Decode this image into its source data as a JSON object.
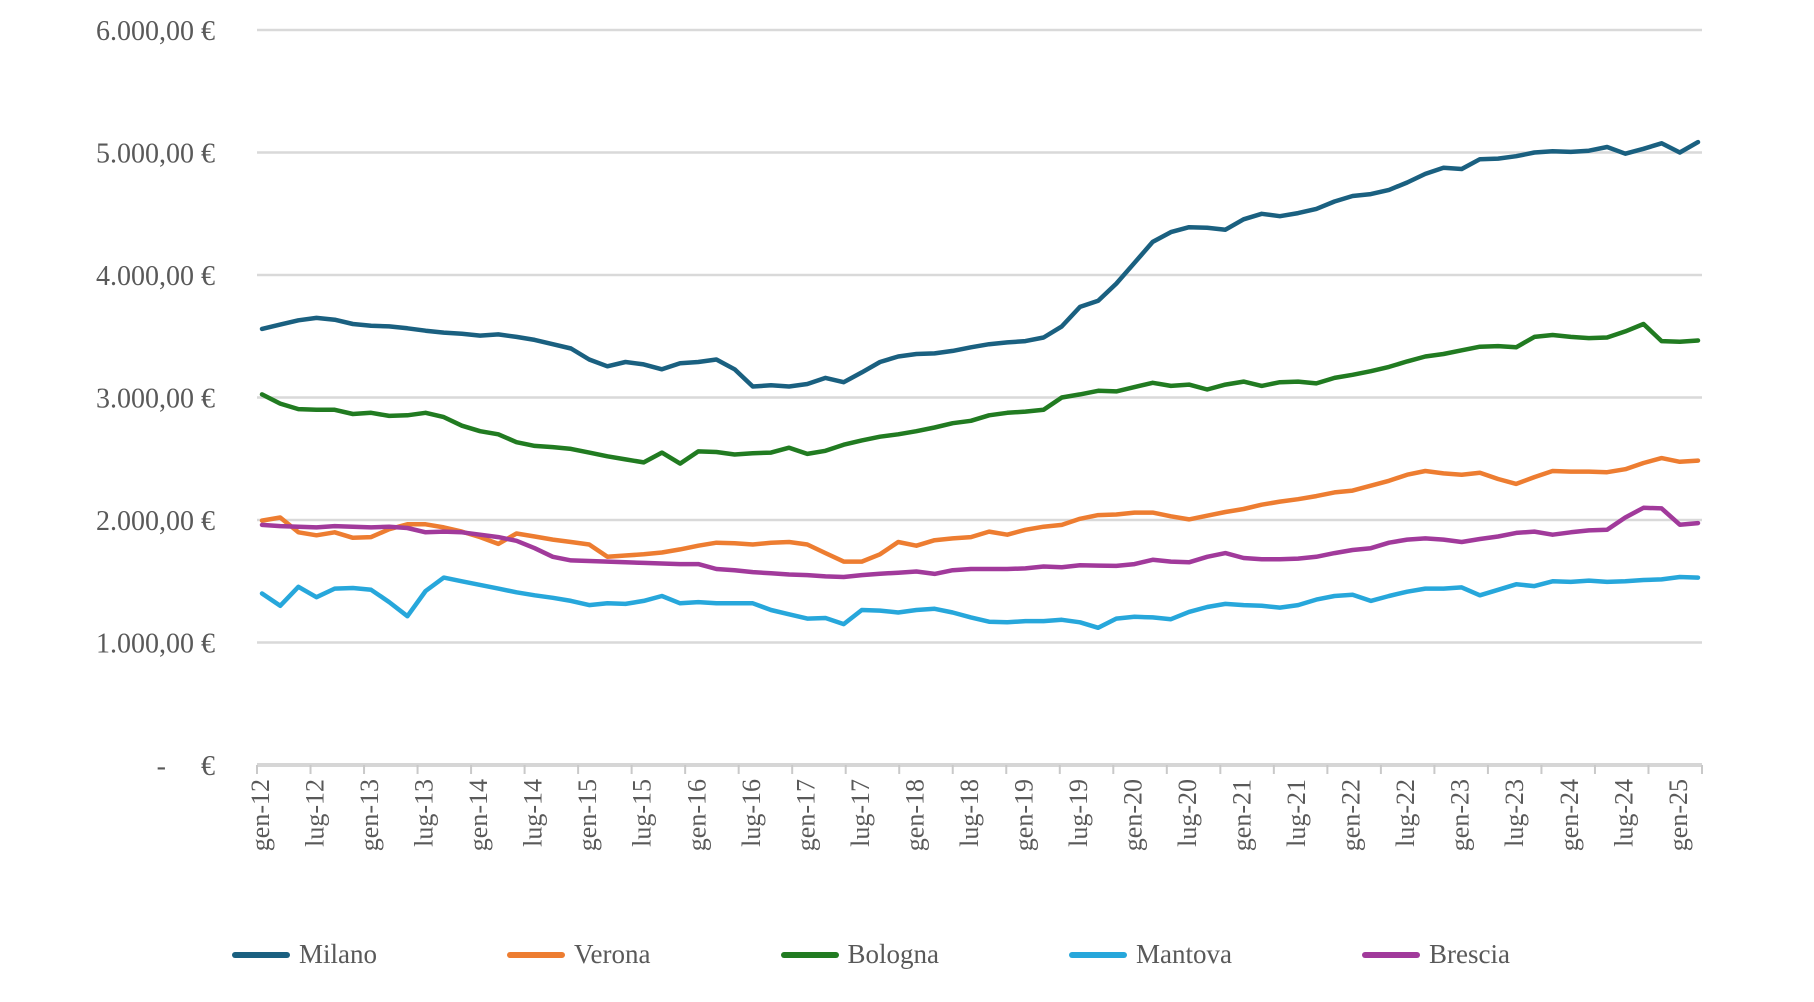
{
  "chart_data": {
    "type": "line",
    "title": "",
    "grid": true,
    "legend_position": "bottom",
    "x_axis": {
      "start": "gen-12",
      "end": "mar-25",
      "points_step_months": 2,
      "tick_labels": [
        "gen-12",
        "lug-12",
        "gen-13",
        "lug-13",
        "gen-14",
        "lug-14",
        "gen-15",
        "lug-15",
        "gen-16",
        "lug-16",
        "gen-17",
        "lug-17",
        "gen-18",
        "lug-18",
        "gen-19",
        "lug-19",
        "gen-20",
        "lug-20",
        "gen-21",
        "lug-21",
        "gen-22",
        "lug-22",
        "gen-23",
        "lug-23",
        "gen-24",
        "lug-24",
        "gen-25"
      ]
    },
    "y_axis": {
      "range": [
        0,
        6000
      ],
      "ticks": [
        {
          "value": 6000,
          "label": "6.000,00 €"
        },
        {
          "value": 5000,
          "label": "5.000,00 €"
        },
        {
          "value": 4000,
          "label": "4.000,00 €"
        },
        {
          "value": 3000,
          "label": "3.000,00 €"
        },
        {
          "value": 2000,
          "label": "2.000,00 €"
        },
        {
          "value": 1000,
          "label": "1.000,00 €"
        },
        {
          "value": 0,
          "label": "-     €"
        }
      ]
    },
    "colors": {
      "grid": "#D9D9D9",
      "axis": "#D6D6D6",
      "tick": "#C9C9C9",
      "text": "#595959"
    },
    "series": [
      {
        "name": "Milano",
        "color": "#1A6080",
        "values": [
          3560,
          3595,
          3630,
          3650,
          3635,
          3600,
          3585,
          3580,
          3565,
          3545,
          3530,
          3520,
          3505,
          3515,
          3495,
          3470,
          3435,
          3400,
          3310,
          3255,
          3290,
          3270,
          3230,
          3280,
          3290,
          3310,
          3230,
          3090,
          3100,
          3090,
          3110,
          3160,
          3125,
          3205,
          3290,
          3335,
          3355,
          3360,
          3380,
          3410,
          3435,
          3450,
          3460,
          3490,
          3580,
          3740,
          3790,
          3930,
          4100,
          4270,
          4350,
          4390,
          4385,
          4370,
          4455,
          4500,
          4480,
          4505,
          4540,
          4600,
          4645,
          4660,
          4695,
          4755,
          4825,
          4875,
          4865,
          4945,
          4950,
          4970,
          5000,
          5010,
          5005,
          5015,
          5045,
          4990,
          5030,
          5075,
          5000,
          5085
        ]
      },
      {
        "name": "Verona",
        "color": "#ED7D31",
        "values": [
          1995,
          2020,
          1900,
          1875,
          1900,
          1855,
          1860,
          1925,
          1965,
          1965,
          1940,
          1905,
          1860,
          1805,
          1890,
          1865,
          1840,
          1820,
          1800,
          1700,
          1710,
          1720,
          1735,
          1760,
          1790,
          1815,
          1810,
          1800,
          1815,
          1820,
          1800,
          1730,
          1660,
          1660,
          1720,
          1820,
          1790,
          1835,
          1850,
          1860,
          1905,
          1880,
          1920,
          1945,
          1960,
          2010,
          2040,
          2045,
          2060,
          2060,
          2030,
          2005,
          2035,
          2065,
          2090,
          2125,
          2150,
          2170,
          2195,
          2225,
          2240,
          2280,
          2320,
          2370,
          2400,
          2380,
          2370,
          2385,
          2335,
          2295,
          2350,
          2400,
          2395,
          2395,
          2390,
          2415,
          2465,
          2505,
          2475,
          2485
        ]
      },
      {
        "name": "Bologna",
        "color": "#217B21",
        "values": [
          3025,
          2950,
          2905,
          2900,
          2900,
          2865,
          2875,
          2850,
          2855,
          2875,
          2840,
          2770,
          2725,
          2700,
          2635,
          2605,
          2595,
          2580,
          2550,
          2520,
          2495,
          2470,
          2550,
          2460,
          2560,
          2555,
          2535,
          2545,
          2550,
          2590,
          2540,
          2565,
          2615,
          2650,
          2680,
          2700,
          2725,
          2755,
          2790,
          2810,
          2855,
          2875,
          2885,
          2900,
          3000,
          3025,
          3055,
          3050,
          3085,
          3120,
          3095,
          3105,
          3065,
          3105,
          3130,
          3095,
          3125,
          3130,
          3115,
          3160,
          3185,
          3215,
          3250,
          3295,
          3335,
          3355,
          3385,
          3415,
          3420,
          3410,
          3495,
          3510,
          3495,
          3485,
          3490,
          3540,
          3600,
          3460,
          3455,
          3465
        ]
      },
      {
        "name": "Mantova",
        "color": "#27A7DB",
        "values": [
          1400,
          1300,
          1455,
          1370,
          1440,
          1445,
          1430,
          1330,
          1215,
          1420,
          1530,
          1500,
          1470,
          1440,
          1410,
          1385,
          1365,
          1340,
          1305,
          1320,
          1315,
          1340,
          1380,
          1320,
          1330,
          1320,
          1320,
          1320,
          1265,
          1230,
          1195,
          1200,
          1150,
          1265,
          1260,
          1245,
          1265,
          1275,
          1245,
          1205,
          1170,
          1165,
          1175,
          1175,
          1185,
          1165,
          1120,
          1195,
          1210,
          1205,
          1190,
          1250,
          1290,
          1315,
          1305,
          1300,
          1285,
          1305,
          1350,
          1380,
          1390,
          1340,
          1380,
          1415,
          1440,
          1440,
          1450,
          1385,
          1430,
          1475,
          1460,
          1500,
          1495,
          1505,
          1495,
          1500,
          1510,
          1515,
          1535,
          1530
        ]
      },
      {
        "name": "Brescia",
        "color": "#A13A9B",
        "values": [
          1960,
          1950,
          1945,
          1940,
          1950,
          1945,
          1940,
          1945,
          1935,
          1900,
          1905,
          1900,
          1880,
          1860,
          1830,
          1770,
          1700,
          1670,
          1665,
          1660,
          1655,
          1650,
          1645,
          1640,
          1640,
          1600,
          1590,
          1575,
          1565,
          1555,
          1550,
          1540,
          1535,
          1550,
          1562,
          1570,
          1580,
          1560,
          1590,
          1600,
          1600,
          1600,
          1605,
          1620,
          1615,
          1630,
          1628,
          1625,
          1640,
          1675,
          1660,
          1655,
          1700,
          1730,
          1690,
          1680,
          1680,
          1685,
          1700,
          1730,
          1755,
          1770,
          1815,
          1840,
          1850,
          1840,
          1820,
          1845,
          1865,
          1895,
          1905,
          1880,
          1900,
          1915,
          1920,
          2020,
          2100,
          2095,
          1962,
          1975
        ]
      }
    ]
  }
}
